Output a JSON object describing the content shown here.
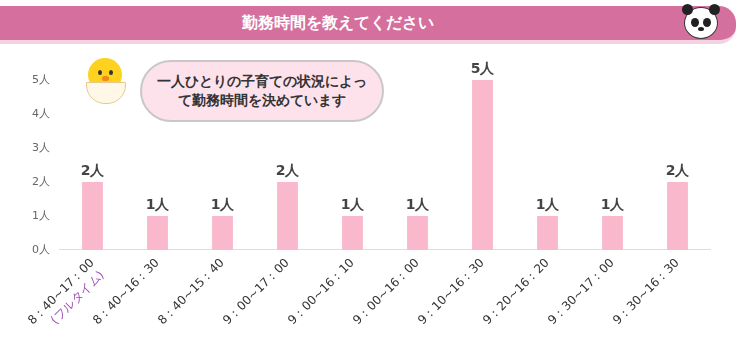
{
  "chart_data": {
    "type": "bar",
    "title": "勤務時間を教えてください",
    "categories": [
      "8：40~17：00",
      "8：40~16：30",
      "8：40~15：40",
      "9：00~17：00",
      "9：00~16：10",
      "9：00~16：00",
      "9：10~16：30",
      "9：20~16：20",
      "9：30~17：00",
      "9：30~16：30"
    ],
    "values": [
      2,
      1,
      1,
      2,
      1,
      1,
      5,
      1,
      1,
      2
    ],
    "value_labels": [
      "2人",
      "1人",
      "1人",
      "2人",
      "1人",
      "1人",
      "5人",
      "1人",
      "1人",
      "2人"
    ],
    "color": "#f9b8cb",
    "ylim": [
      0,
      5
    ],
    "yticks": [
      {
        "value": 0,
        "label": "0人"
      },
      {
        "value": 1,
        "label": "1人"
      },
      {
        "value": 2,
        "label": "2人"
      },
      {
        "value": 3,
        "label": "3人"
      },
      {
        "value": 4,
        "label": "4人"
      },
      {
        "value": 5,
        "label": "5人"
      }
    ],
    "grid": false,
    "data_labels": true,
    "annotations": [
      {
        "text": "一人ひとりの子育ての状況によって勤務時間を決めています"
      },
      {
        "text": "(フルタイム)",
        "category": "8：40~17：00"
      }
    ]
  }
}
